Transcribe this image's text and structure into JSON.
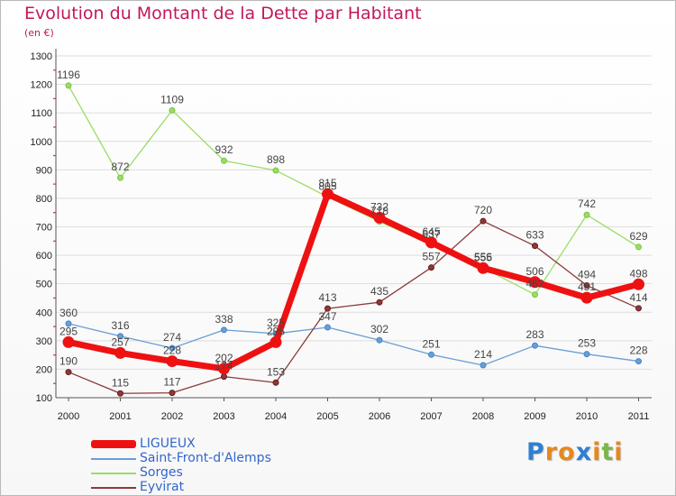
{
  "title": "Evolution du Montant de la Dette par Habitant",
  "subtitle": "(en €)",
  "logo": {
    "letters": [
      "P",
      "r",
      "o",
      "x",
      "i",
      "t",
      "i"
    ],
    "colors": [
      "#2f7fd0",
      "#e5891e",
      "#e5891e",
      "#2f7fd0",
      "#e5891e",
      "#7ab648",
      "#e5891e"
    ]
  },
  "colors": {
    "axis": "#555555",
    "grid": "#dddddd",
    "tick_label": "#222222",
    "value_label": "#444444"
  },
  "chart_data": {
    "type": "line",
    "x": [
      "2000",
      "2001",
      "2002",
      "2003",
      "2004",
      "2005",
      "2006",
      "2007",
      "2008",
      "2009",
      "2010",
      "2011"
    ],
    "ylim": [
      100,
      1300
    ],
    "yticks": [
      100,
      200,
      300,
      400,
      500,
      600,
      700,
      800,
      900,
      1000,
      1100,
      1200,
      1300
    ],
    "grid": "horizontal",
    "legend_position": "bottom-left",
    "series": [
      {
        "name": "LIGUEUX",
        "values": [
          295,
          257,
          228,
          202,
          295,
          815,
          732,
          645,
          555,
          506,
          451,
          498
        ],
        "labels": [
          "295",
          "257",
          "228",
          "202",
          "295",
          "815",
          "732",
          "645",
          "555",
          "506",
          "451",
          "498"
        ],
        "color": "#ee1111",
        "emphasis": true
      },
      {
        "name": "Saint-Front-d'Alemps",
        "values": [
          360,
          316,
          274,
          338,
          325,
          347,
          302,
          251,
          214,
          283,
          253,
          228
        ],
        "labels": [
          "360",
          "316",
          "274",
          "338",
          "325",
          "347",
          "302",
          "251",
          "214",
          "283",
          "253",
          "228"
        ],
        "color": "#6a9fd4",
        "marker": "#3f86c9"
      },
      {
        "name": "Sorges",
        "values": [
          1196,
          872,
          1109,
          932,
          898,
          805,
          718,
          637,
          556,
          462,
          742,
          629
        ],
        "labels": [
          "1196",
          "872",
          "1109",
          "932",
          "898",
          "805",
          "718",
          "637",
          "556",
          "462",
          "742",
          "629"
        ],
        "color": "#99dd66",
        "marker": "#7cc43c"
      },
      {
        "name": "Eyvirat",
        "values": [
          190,
          115,
          117,
          174,
          153,
          413,
          435,
          557,
          720,
          633,
          494,
          414
        ],
        "labels": [
          "190",
          "115",
          "117",
          "174",
          "153",
          "413",
          "435",
          "557",
          "720",
          "633",
          "494",
          "414"
        ],
        "color": "#8b3a3a",
        "marker": "#6a1a1a"
      }
    ]
  }
}
